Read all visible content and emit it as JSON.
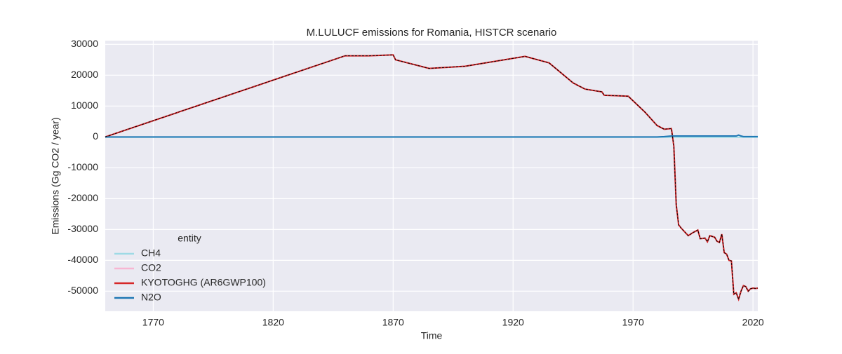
{
  "chart_data": {
    "type": "line",
    "title": "M.LULUCF emissions for Romania, HISTCR scenario",
    "xlabel": "Time",
    "ylabel": "Emissions (Gg CO2 / year)",
    "legend_title": "entity",
    "legend_loc": "lower left",
    "grid": true,
    "dashed_overlay": "KYOTOGHG (AR6GWP100)",
    "xlim": [
      1750,
      2022
    ],
    "ylim": [
      -56500,
      31200
    ],
    "xticks": [
      1770,
      1820,
      1870,
      1920,
      1970,
      2020
    ],
    "yticks": [
      -50000,
      -40000,
      -30000,
      -20000,
      -10000,
      0,
      10000,
      20000,
      30000
    ],
    "x": [
      1750,
      1850,
      1860,
      1870,
      1871,
      1885,
      1900,
      1925,
      1935,
      1945,
      1950,
      1957,
      1958,
      1968,
      1975,
      1980,
      1983,
      1986,
      1987,
      1988,
      1989,
      1990,
      1993,
      1995,
      1997,
      1998,
      2000,
      2001,
      2002,
      2004,
      2005,
      2006,
      2007,
      2008,
      2009,
      2010,
      2011,
      2012,
      2013,
      2014,
      2015,
      2016,
      2017,
      2018,
      2019,
      2020,
      2021,
      2022
    ],
    "series": [
      {
        "name": "CH4",
        "color": "#9edae5",
        "values": [
          -100,
          -100,
          -100,
          -100,
          -100,
          -100,
          -100,
          -100,
          -100,
          -100,
          -100,
          -100,
          -100,
          -100,
          -100,
          -100,
          -100,
          -100,
          -100,
          -100,
          -100,
          -100,
          -100,
          -100,
          -100,
          -100,
          -100,
          -100,
          -100,
          -100,
          -100,
          -100,
          -100,
          -100,
          -100,
          -100,
          -100,
          -100,
          -100,
          -100,
          -100,
          -100,
          -100,
          -100,
          -100,
          -100,
          -100,
          -100
        ]
      },
      {
        "name": "CO2",
        "color": "#f7b6d2",
        "values": [
          0,
          26300,
          26300,
          26600,
          25000,
          22200,
          22900,
          26100,
          24000,
          17500,
          15500,
          14600,
          13500,
          13200,
          8000,
          3700,
          2500,
          2700,
          -3000,
          -22000,
          -28500,
          -29500,
          -32000,
          -31000,
          -30200,
          -33000,
          -32800,
          -34000,
          -32000,
          -32500,
          -33800,
          -34200,
          -31500,
          -37500,
          -38000,
          -40000,
          -40200,
          -51000,
          -50500,
          -52600,
          -50000,
          -48200,
          -48500,
          -50000,
          -49200,
          -49000,
          -49100,
          -49000
        ]
      },
      {
        "name": "KYOTOGHG (AR6GWP100)",
        "color": "#d62728",
        "values": [
          0,
          26300,
          26300,
          26600,
          25000,
          22200,
          22900,
          26100,
          24000,
          17500,
          15500,
          14600,
          13500,
          13200,
          8000,
          3700,
          2500,
          2700,
          -3000,
          -22000,
          -28500,
          -29500,
          -32000,
          -31000,
          -30200,
          -33000,
          -32800,
          -34000,
          -32000,
          -32500,
          -33800,
          -34200,
          -31500,
          -37500,
          -38000,
          -40000,
          -40200,
          -51000,
          -50500,
          -52600,
          -50000,
          -48200,
          -48500,
          -50000,
          -49200,
          -49000,
          -49100,
          -49000
        ]
      },
      {
        "name": "N2O",
        "color": "#1f77b4",
        "values": [
          0,
          0,
          0,
          0,
          0,
          0,
          0,
          0,
          0,
          0,
          0,
          0,
          0,
          0,
          0,
          0,
          100,
          300,
          300,
          300,
          300,
          300,
          300,
          300,
          300,
          300,
          300,
          300,
          300,
          300,
          300,
          300,
          300,
          300,
          300,
          300,
          300,
          300,
          300,
          600,
          300,
          100,
          100,
          100,
          100,
          100,
          100,
          100
        ]
      }
    ]
  }
}
